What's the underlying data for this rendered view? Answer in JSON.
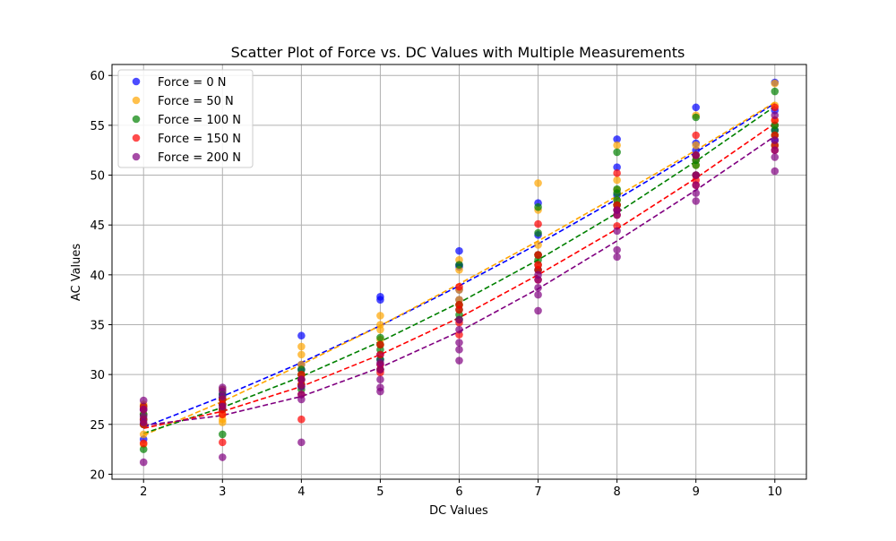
{
  "chart_data": {
    "type": "scatter",
    "title": "Scatter Plot of Force vs. DC Values with Multiple Measurements",
    "xlabel": "DC Values",
    "ylabel": "AC Values",
    "xlim": [
      1.6,
      10.4
    ],
    "ylim": [
      19.5,
      61.1
    ],
    "xticks": [
      2,
      3,
      4,
      5,
      6,
      7,
      8,
      9,
      10
    ],
    "yticks": [
      20,
      25,
      30,
      35,
      40,
      45,
      50,
      55,
      60
    ],
    "grid": true,
    "legend_position": "upper-left",
    "series": [
      {
        "name": "Force = 0 N",
        "color": "#0000ff",
        "points": [
          [
            2,
            23.5
          ],
          [
            2,
            25.0
          ],
          [
            2,
            25.5
          ],
          [
            2,
            26.0
          ],
          [
            2,
            26.5
          ],
          [
            3,
            27.5
          ],
          [
            3,
            28.0
          ],
          [
            3,
            28.5
          ],
          [
            3,
            26.5
          ],
          [
            3,
            27.0
          ],
          [
            4,
            33.9
          ],
          [
            4,
            31.0
          ],
          [
            4,
            30.5
          ],
          [
            4,
            29.5
          ],
          [
            4,
            28.8
          ],
          [
            5,
            37.8
          ],
          [
            5,
            37.5
          ],
          [
            5,
            32.0
          ],
          [
            5,
            31.5
          ],
          [
            5,
            31.0
          ],
          [
            6,
            42.4
          ],
          [
            6,
            41.0
          ],
          [
            6,
            40.8
          ],
          [
            6,
            38.5
          ],
          [
            6,
            37.5
          ],
          [
            7,
            47.2
          ],
          [
            7,
            44.0
          ],
          [
            7,
            42.0
          ],
          [
            7,
            41.0
          ],
          [
            7,
            40.5
          ],
          [
            8,
            53.6
          ],
          [
            8,
            50.8
          ],
          [
            8,
            48.0
          ],
          [
            8,
            47.0
          ],
          [
            8,
            46.5
          ],
          [
            9,
            56.8
          ],
          [
            9,
            53.2
          ],
          [
            9,
            52.5
          ],
          [
            9,
            51.5
          ],
          [
            9,
            50.0
          ],
          [
            10,
            59.3
          ],
          [
            10,
            56.5
          ],
          [
            10,
            55.0
          ],
          [
            10,
            54.5
          ],
          [
            10,
            53.5
          ]
        ],
        "trend": [
          [
            2,
            24.7
          ],
          [
            3,
            27.8
          ],
          [
            4,
            31.2
          ],
          [
            5,
            34.9
          ],
          [
            6,
            38.9
          ],
          [
            7,
            43.1
          ],
          [
            8,
            47.6
          ],
          [
            9,
            52.3
          ],
          [
            10,
            57.2
          ]
        ]
      },
      {
        "name": "Force = 50 N",
        "color": "#ffa500",
        "points": [
          [
            2,
            27.0
          ],
          [
            2,
            26.0
          ],
          [
            2,
            25.0
          ],
          [
            2,
            24.0
          ],
          [
            2,
            23.0
          ],
          [
            3,
            28.5
          ],
          [
            3,
            27.5
          ],
          [
            3,
            26.0
          ],
          [
            3,
            25.5
          ],
          [
            3,
            25.2
          ],
          [
            4,
            32.8
          ],
          [
            4,
            32.0
          ],
          [
            4,
            31.0
          ],
          [
            4,
            30.0
          ],
          [
            4,
            29.0
          ],
          [
            5,
            35.9
          ],
          [
            5,
            35.0
          ],
          [
            5,
            34.5
          ],
          [
            5,
            33.5
          ],
          [
            5,
            33.0
          ],
          [
            6,
            41.5
          ],
          [
            6,
            40.5
          ],
          [
            6,
            38.5
          ],
          [
            6,
            37.5
          ],
          [
            6,
            37.0
          ],
          [
            7,
            49.2
          ],
          [
            7,
            46.5
          ],
          [
            7,
            43.0
          ],
          [
            7,
            42.0
          ],
          [
            7,
            41.0
          ],
          [
            8,
            53.0
          ],
          [
            8,
            49.5
          ],
          [
            8,
            48.5
          ],
          [
            8,
            47.5
          ],
          [
            8,
            47.0
          ],
          [
            9,
            56.0
          ],
          [
            9,
            53.0
          ],
          [
            9,
            52.0
          ],
          [
            9,
            51.5
          ],
          [
            9,
            51.0
          ],
          [
            10,
            59.2
          ],
          [
            10,
            57.0
          ],
          [
            10,
            55.5
          ],
          [
            10,
            55.0
          ],
          [
            10,
            54.0
          ]
        ],
        "trend": [
          [
            2,
            23.9
          ],
          [
            3,
            27.3
          ],
          [
            4,
            31.0
          ],
          [
            5,
            34.9
          ],
          [
            6,
            39.1
          ],
          [
            7,
            43.4
          ],
          [
            8,
            47.9
          ],
          [
            9,
            52.5
          ],
          [
            10,
            57.3
          ]
        ]
      },
      {
        "name": "Force = 100 N",
        "color": "#008000",
        "points": [
          [
            2,
            22.5
          ],
          [
            2,
            25.0
          ],
          [
            2,
            25.5
          ],
          [
            2,
            26.0
          ],
          [
            2,
            26.8
          ],
          [
            3,
            24.0
          ],
          [
            3,
            26.5
          ],
          [
            3,
            27.0
          ],
          [
            3,
            27.5
          ],
          [
            3,
            28.0
          ],
          [
            4,
            29.0
          ],
          [
            4,
            30.0
          ],
          [
            4,
            30.5
          ],
          [
            4,
            29.5
          ],
          [
            4,
            28.5
          ],
          [
            5,
            33.7
          ],
          [
            5,
            33.0
          ],
          [
            5,
            32.5
          ],
          [
            5,
            31.5
          ],
          [
            5,
            30.5
          ],
          [
            6,
            41.0
          ],
          [
            6,
            37.0
          ],
          [
            6,
            36.5
          ],
          [
            6,
            36.0
          ],
          [
            6,
            35.5
          ],
          [
            7,
            46.8
          ],
          [
            7,
            44.2
          ],
          [
            7,
            42.0
          ],
          [
            7,
            41.5
          ],
          [
            7,
            40.5
          ],
          [
            8,
            52.3
          ],
          [
            8,
            48.6
          ],
          [
            8,
            48.2
          ],
          [
            8,
            47.5
          ],
          [
            8,
            47.0
          ],
          [
            9,
            55.8
          ],
          [
            9,
            52.0
          ],
          [
            9,
            51.5
          ],
          [
            9,
            51.0
          ],
          [
            9,
            50.0
          ],
          [
            10,
            58.4
          ],
          [
            10,
            55.0
          ],
          [
            10,
            54.5
          ],
          [
            10,
            54.0
          ],
          [
            10,
            53.0
          ]
        ],
        "trend": [
          [
            2,
            24.1
          ],
          [
            3,
            26.7
          ],
          [
            4,
            29.8
          ],
          [
            5,
            33.3
          ],
          [
            6,
            37.2
          ],
          [
            7,
            41.5
          ],
          [
            8,
            46.2
          ],
          [
            9,
            51.4
          ],
          [
            10,
            56.9
          ]
        ]
      },
      {
        "name": "Force = 150 N",
        "color": "#ff0000",
        "points": [
          [
            2,
            23.1
          ],
          [
            2,
            26.5
          ],
          [
            2,
            26.8
          ],
          [
            2,
            25.5
          ],
          [
            2,
            25.0
          ],
          [
            3,
            23.2
          ],
          [
            3,
            27.0
          ],
          [
            3,
            27.5
          ],
          [
            3,
            26.5
          ],
          [
            3,
            26.0
          ],
          [
            4,
            25.5
          ],
          [
            4,
            28.0
          ],
          [
            4,
            29.0
          ],
          [
            4,
            29.5
          ],
          [
            4,
            30.0
          ],
          [
            5,
            30.5
          ],
          [
            5,
            30.2
          ],
          [
            5,
            31.0
          ],
          [
            5,
            32.0
          ],
          [
            5,
            33.0
          ],
          [
            6,
            35.2
          ],
          [
            6,
            34.0
          ],
          [
            6,
            38.8
          ],
          [
            6,
            36.5
          ],
          [
            6,
            37.0
          ],
          [
            7,
            45.1
          ],
          [
            7,
            40.5
          ],
          [
            7,
            41.0
          ],
          [
            7,
            42.0
          ],
          [
            7,
            39.5
          ],
          [
            8,
            50.2
          ],
          [
            8,
            44.9
          ],
          [
            8,
            47.0
          ],
          [
            8,
            46.5
          ],
          [
            8,
            46.0
          ],
          [
            9,
            54.0
          ],
          [
            9,
            52.0
          ],
          [
            9,
            50.0
          ],
          [
            9,
            49.5
          ],
          [
            9,
            49.0
          ],
          [
            10,
            56.8
          ],
          [
            10,
            55.5
          ],
          [
            10,
            54.0
          ],
          [
            10,
            53.0
          ],
          [
            10,
            52.5
          ]
        ],
        "trend": [
          [
            2,
            24.6
          ],
          [
            3,
            26.3
          ],
          [
            4,
            28.8
          ],
          [
            5,
            32.0
          ],
          [
            6,
            35.7
          ],
          [
            7,
            40.0
          ],
          [
            8,
            44.6
          ],
          [
            9,
            49.7
          ],
          [
            10,
            55.2
          ]
        ]
      },
      {
        "name": "Force = 200 N",
        "color": "#800080",
        "points": [
          [
            2,
            21.2
          ],
          [
            2,
            27.4
          ],
          [
            2,
            26.5
          ],
          [
            2,
            25.8
          ],
          [
            2,
            25.2
          ],
          [
            3,
            21.7
          ],
          [
            3,
            28.7
          ],
          [
            3,
            28.3
          ],
          [
            3,
            27.8
          ],
          [
            3,
            26.8
          ],
          [
            4,
            23.2
          ],
          [
            4,
            29.5
          ],
          [
            4,
            28.8
          ],
          [
            4,
            28.0
          ],
          [
            4,
            27.5
          ],
          [
            5,
            28.3
          ],
          [
            5,
            28.7
          ],
          [
            5,
            29.5
          ],
          [
            5,
            30.5
          ],
          [
            5,
            31.2
          ],
          [
            6,
            31.4
          ],
          [
            6,
            32.5
          ],
          [
            6,
            33.2
          ],
          [
            6,
            34.5
          ],
          [
            6,
            35.5
          ],
          [
            7,
            36.4
          ],
          [
            7,
            38.0
          ],
          [
            7,
            38.7
          ],
          [
            7,
            39.5
          ],
          [
            7,
            40.0
          ],
          [
            8,
            41.8
          ],
          [
            8,
            42.5
          ],
          [
            8,
            44.4
          ],
          [
            8,
            46.0
          ],
          [
            8,
            46.5
          ],
          [
            9,
            47.4
          ],
          [
            9,
            48.2
          ],
          [
            9,
            49.0
          ],
          [
            9,
            50.0
          ],
          [
            9,
            52.0
          ],
          [
            10,
            50.4
          ],
          [
            10,
            51.8
          ],
          [
            10,
            52.5
          ],
          [
            10,
            53.5
          ],
          [
            10,
            56.0
          ]
        ],
        "trend": [
          [
            2,
            24.9
          ],
          [
            3,
            25.9
          ],
          [
            4,
            27.8
          ],
          [
            5,
            30.7
          ],
          [
            6,
            34.3
          ],
          [
            7,
            38.6
          ],
          [
            8,
            43.4
          ],
          [
            9,
            48.5
          ],
          [
            10,
            53.9
          ]
        ]
      }
    ]
  }
}
